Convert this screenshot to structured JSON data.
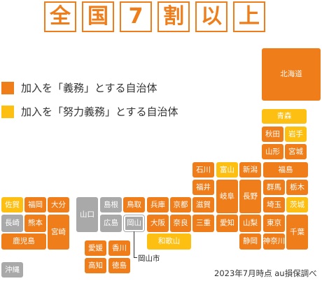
{
  "title_chars": [
    "全",
    "国",
    "7",
    "割",
    "以",
    "上"
  ],
  "legend": [
    {
      "label": "加入を「義務」とする自治体",
      "color": "#ef7d1a"
    },
    {
      "label": "加入を「努力義務」とする自治体",
      "color": "#fdbf12"
    }
  ],
  "colors": {
    "mandatory": "#ef7d1a",
    "effort": "#fdbf12",
    "none": "#a9a9a9"
  },
  "prefectures": {
    "hokkaido": "北海道",
    "aomori": "青森",
    "akita": "秋田",
    "iwate": "岩手",
    "yamagata": "山形",
    "miyagi": "宮城",
    "ishikawa": "石川",
    "toyama": "富山",
    "niigata": "新潟",
    "fukushima": "福島",
    "fukui": "福井",
    "gifu": "岐阜",
    "nagano": "長野",
    "gunma": "群馬",
    "tochigi": "栃木",
    "saitama": "埼玉",
    "ibaraki": "茨城",
    "shiga": "滋賀",
    "aichi": "愛知",
    "yamanashi": "山梨",
    "tokyo": "東京",
    "chiba": "千葉",
    "shizuoka": "静岡",
    "kanagawa": "神奈川",
    "mie": "三重",
    "hyogo": "兵庫",
    "kyoto": "京都",
    "osaka": "大阪",
    "nara": "奈良",
    "wakayama": "和歌山",
    "yamaguchi": "山口",
    "shimane": "島根",
    "tottori": "鳥取",
    "hiroshima": "広島",
    "okayama": "岡山",
    "ehime": "愛媛",
    "kagawa": "香川",
    "kochi": "高知",
    "tokushima": "徳島",
    "saga": "佐賀",
    "fukuoka": "福岡",
    "oita": "大分",
    "nagasaki": "長崎",
    "kumamoto": "熊本",
    "miyazaki": "宮崎",
    "kagoshima": "鹿児島",
    "okinawa": "沖縄"
  },
  "callout": "岡山市",
  "source": "2023年7月時点 au損保調べ"
}
